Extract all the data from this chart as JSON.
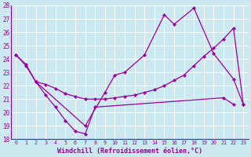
{
  "xlabel": "Windchill (Refroidissement éolien,°C)",
  "xlim": [
    -0.5,
    23.5
  ],
  "ylim": [
    18,
    28
  ],
  "yticks": [
    18,
    19,
    20,
    21,
    22,
    23,
    24,
    25,
    26,
    27,
    28
  ],
  "xticks": [
    0,
    1,
    2,
    3,
    4,
    5,
    6,
    7,
    8,
    9,
    10,
    11,
    12,
    13,
    14,
    15,
    16,
    17,
    18,
    19,
    20,
    21,
    22,
    23
  ],
  "bg_color": "#cce8f0",
  "grid_color": "#ffffff",
  "line_color": "#990099",
  "line1_x": [
    0,
    1,
    2,
    3,
    4,
    5,
    6,
    7,
    8,
    21,
    22
  ],
  "line1_y": [
    24.3,
    23.6,
    22.3,
    21.3,
    20.4,
    19.4,
    18.6,
    18.4,
    20.4,
    21.1,
    20.6
  ],
  "line2_x": [
    2,
    7,
    9,
    10,
    11,
    13,
    15,
    16,
    18,
    20,
    22,
    23
  ],
  "line2_y": [
    22.3,
    19.0,
    21.5,
    22.8,
    23.0,
    24.3,
    27.3,
    26.6,
    27.8,
    24.4,
    22.5,
    20.6
  ],
  "line3_x": [
    0,
    1,
    2,
    3,
    4,
    5,
    6,
    7,
    8,
    9,
    10,
    11,
    12,
    13,
    14,
    15,
    16,
    17,
    18,
    19,
    20,
    21,
    22,
    23
  ],
  "line3_y": [
    24.3,
    23.5,
    22.3,
    22.1,
    21.8,
    21.4,
    21.2,
    21.0,
    21.0,
    21.0,
    21.1,
    21.2,
    21.3,
    21.5,
    21.7,
    22.0,
    22.4,
    22.8,
    23.5,
    24.2,
    24.8,
    25.5,
    26.3,
    20.6
  ]
}
